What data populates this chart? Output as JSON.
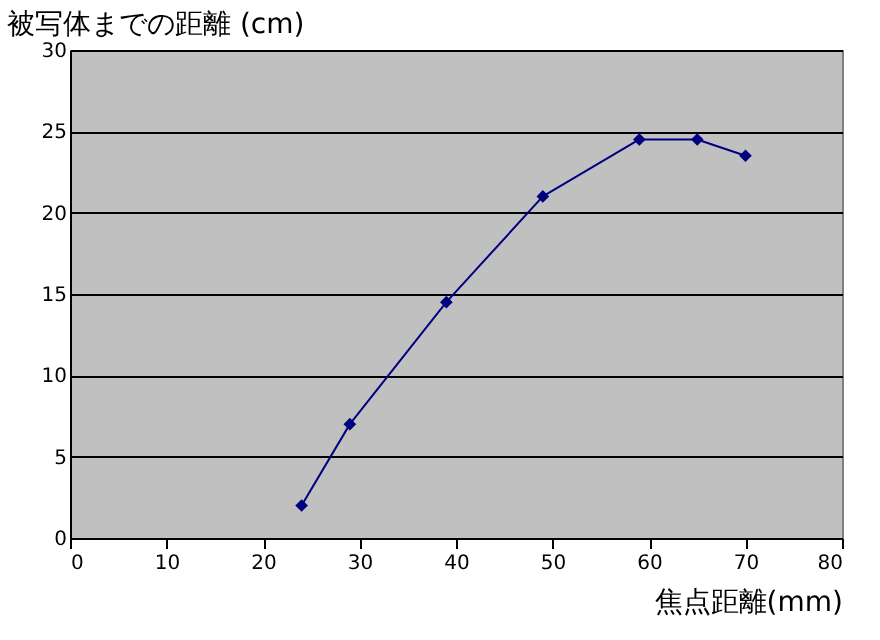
{
  "chart_data": {
    "type": "line",
    "xlabel": "焦点距離(mm)",
    "ylabel": "被写体までの距離 (cm)",
    "x": [
      24,
      29,
      39,
      49,
      59,
      65,
      70
    ],
    "series": [
      {
        "color": "#000080",
        "values": [
          2,
          7,
          14.5,
          21,
          24.5,
          24.5,
          23.5
        ]
      }
    ],
    "xlim": [
      0,
      80
    ],
    "xticks": [
      0,
      10,
      20,
      30,
      40,
      50,
      60,
      70,
      80
    ],
    "ylim": [
      0,
      30
    ],
    "yticks": [
      0,
      5,
      10,
      15,
      20,
      25,
      30
    ],
    "grid": "y",
    "marker": "diamond",
    "line_style": "solid"
  }
}
